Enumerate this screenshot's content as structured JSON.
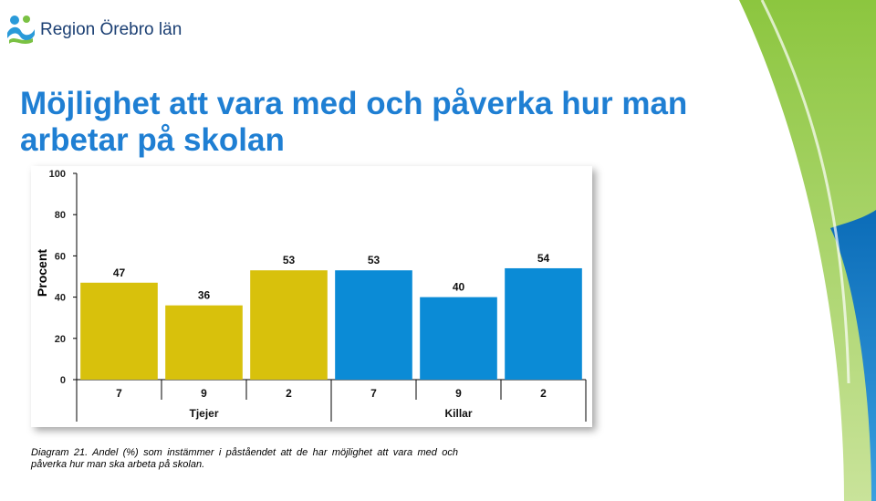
{
  "header": {
    "logo_text": "Region Örebro län"
  },
  "title": "Möjlighet att vara med och påverka hur man arbetar på skolan",
  "caption": "Diagram 21. Andel (%) som instämmer i påståendet att de har möjlighet att vara med och påverka hur man ska arbeta på skolan.",
  "colors": {
    "title": "#1f7fd3",
    "tjejer": "#d8c10c",
    "killar": "#0b8bd6",
    "logo": "#1b3f73"
  },
  "chart_data": {
    "type": "bar",
    "ylabel": "Procent",
    "ylim": [
      0,
      100
    ],
    "yticks": [
      0,
      20,
      40,
      60,
      80,
      100
    ],
    "grid": false,
    "categories": [
      "7",
      "9",
      "2",
      "7",
      "9",
      "2"
    ],
    "groups": [
      {
        "label": "Tjejer",
        "categories": [
          "7",
          "9",
          "2"
        ],
        "values": [
          47,
          36,
          53
        ]
      },
      {
        "label": "Killar",
        "categories": [
          "7",
          "9",
          "2"
        ],
        "values": [
          53,
          40,
          54
        ]
      }
    ]
  }
}
